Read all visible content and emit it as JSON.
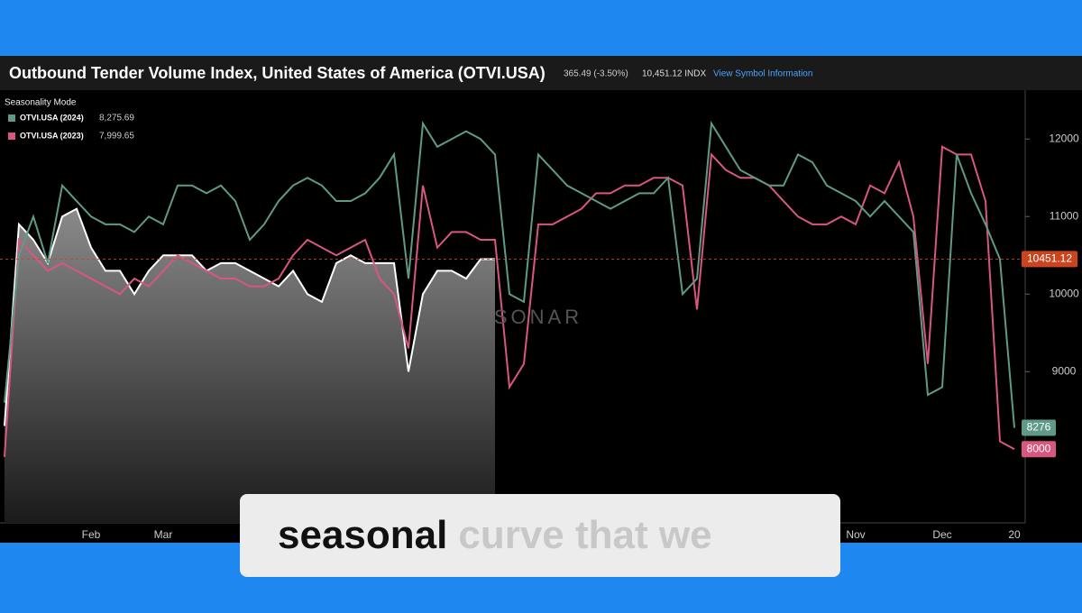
{
  "header": {
    "title": "Outbound Tender Volume Index, United States of America (OTVI.USA)",
    "change": "365.49 (-3.50%)",
    "price": "10,451.12 INDX",
    "link": "View Symbol Information"
  },
  "legend_title": "Seasonality Mode",
  "watermark": "SONAR",
  "caption": {
    "spoken": "seasonal",
    "upcoming": "curve that we"
  },
  "chart_data": {
    "type": "line",
    "categories": [
      null,
      null,
      null,
      null,
      null,
      null,
      "Feb",
      null,
      null,
      null,
      null,
      "Mar",
      null,
      null,
      null,
      null,
      null,
      null,
      null,
      null,
      null,
      null,
      null,
      null,
      null,
      null,
      null,
      null,
      null,
      null,
      null,
      null,
      null,
      null,
      null,
      null,
      null,
      null,
      null,
      null,
      null,
      null,
      null,
      null,
      null,
      null,
      null,
      null,
      null,
      null,
      null,
      null,
      null,
      null,
      null,
      null,
      null,
      null,
      null,
      "Nov",
      null,
      null,
      null,
      null,
      null,
      "Dec",
      null,
      null,
      null,
      null,
      "20"
    ],
    "series": [
      {
        "name": "OTVI.USA (2024)",
        "legend_value": "8,275.69",
        "tag": "8276",
        "color": "#5f9a88",
        "values": [
          8600,
          10500,
          11000,
          10400,
          11400,
          11200,
          11000,
          10900,
          10900,
          10800,
          11000,
          10900,
          11400,
          11400,
          11300,
          11400,
          11200,
          10700,
          10900,
          11200,
          11400,
          11500,
          11400,
          11200,
          11200,
          11300,
          11500,
          11800,
          10200,
          12200,
          11900,
          12000,
          12100,
          12000,
          11800,
          10000,
          9900,
          11800,
          11600,
          11400,
          11300,
          11200,
          11100,
          11200,
          11300,
          11300,
          11500,
          10000,
          10200,
          12200,
          11900,
          11600,
          11500,
          11400,
          11400,
          11800,
          11700,
          11400,
          11300,
          11200,
          11000,
          11200,
          11000,
          10800,
          8700,
          8800,
          11800,
          11300,
          10900,
          10450,
          8276
        ]
      },
      {
        "name": "OTVI.USA (2023)",
        "legend_value": "7,999.65",
        "tag": "8000",
        "color": "#d9577f",
        "values": [
          7900,
          10700,
          10500,
          10300,
          10400,
          10300,
          10200,
          10100,
          10000,
          10200,
          10100,
          10300,
          10500,
          10400,
          10300,
          10200,
          10200,
          10100,
          10100,
          10200,
          10500,
          10700,
          10600,
          10500,
          10600,
          10700,
          10200,
          10000,
          9300,
          11400,
          10600,
          10800,
          10800,
          10700,
          10700,
          8800,
          9100,
          10900,
          10900,
          11000,
          11100,
          11300,
          11300,
          11400,
          11400,
          11500,
          11500,
          11400,
          9800,
          11800,
          11600,
          11500,
          11500,
          11400,
          11200,
          11000,
          10900,
          10900,
          11000,
          10900,
          11400,
          11300,
          11700,
          11000,
          9100,
          11900,
          11800,
          11800,
          11200,
          8100,
          8000
        ]
      },
      {
        "color": "#ffffff",
        "area": true,
        "values": [
          8300,
          10900,
          10700,
          10400,
          11000,
          11100,
          10600,
          10300,
          10300,
          10000,
          10300,
          10500,
          10500,
          10500,
          10300,
          10400,
          10400,
          10300,
          10200,
          10100,
          10300,
          10000,
          9900,
          10400,
          10500,
          10400,
          10400,
          10400,
          9000,
          10000,
          10300,
          10300,
          10200,
          10450,
          10451.12,
          null,
          null,
          null,
          null,
          null,
          null,
          null,
          null,
          null,
          null,
          null,
          null,
          null,
          null,
          null,
          null,
          null,
          null,
          null,
          null,
          null,
          null,
          null,
          null,
          null,
          null,
          null,
          null,
          null,
          null,
          null,
          null,
          null,
          null,
          null,
          null
        ]
      }
    ],
    "price_line": {
      "value": 10451.12,
      "label": "10451.12",
      "color": "#c8451f"
    },
    "ylim": [
      7050,
      12630
    ],
    "yticks": [
      9000,
      10000,
      11000,
      12000
    ]
  }
}
